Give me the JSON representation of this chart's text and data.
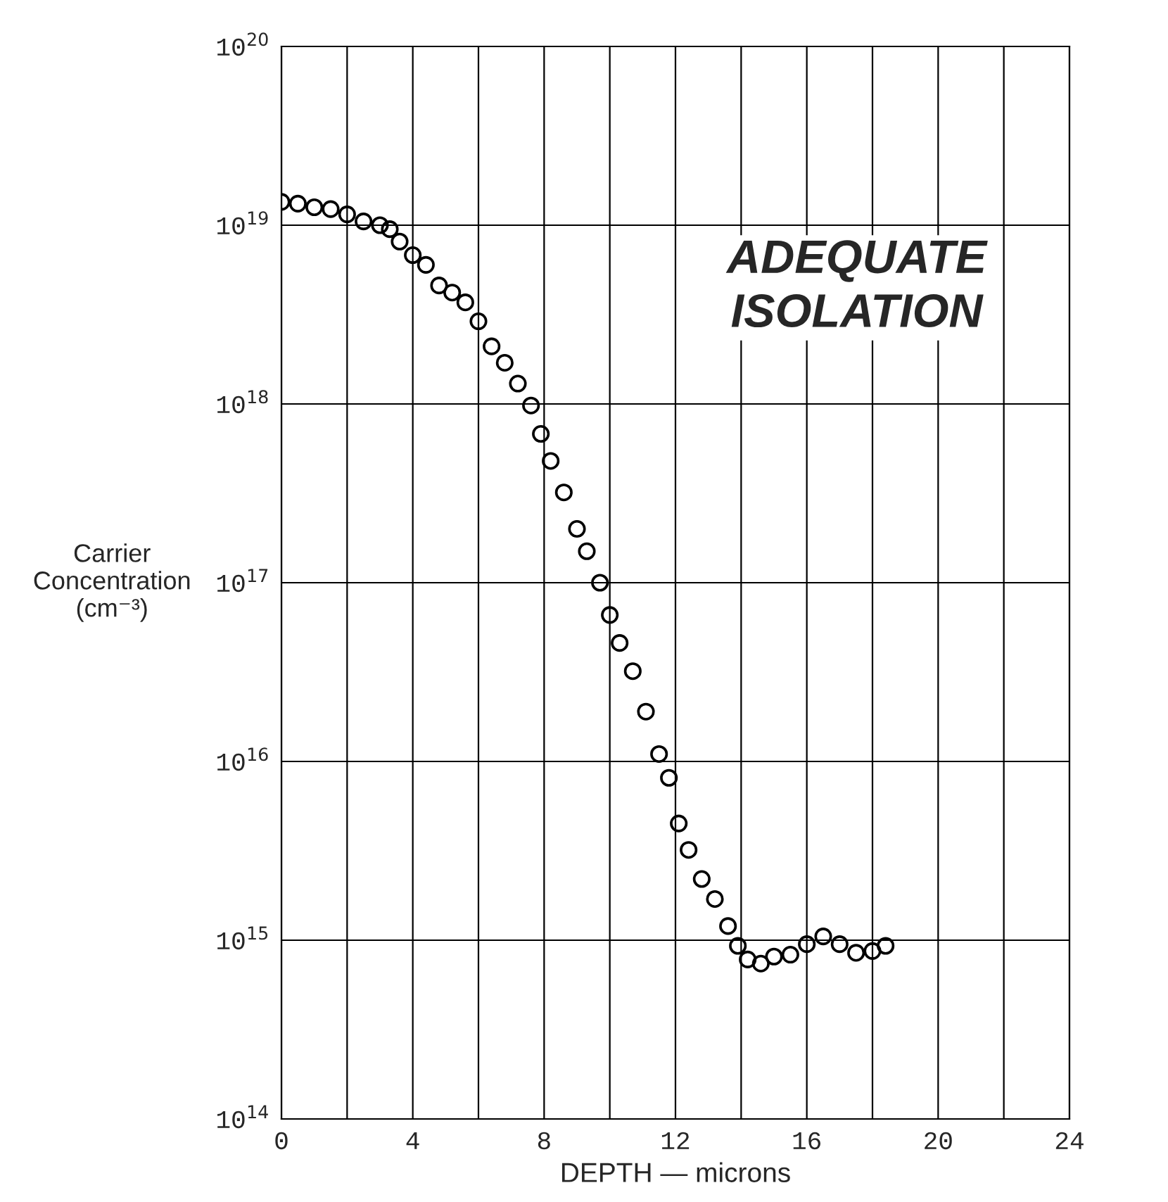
{
  "chart_data": {
    "type": "scatter",
    "x": [
      0,
      0.5,
      1,
      1.5,
      2,
      2.5,
      3,
      3.3,
      3.6,
      4,
      4.4,
      4.8,
      5.2,
      5.6,
      6,
      6.4,
      6.8,
      7.2,
      7.6,
      7.9,
      8.2,
      8.6,
      9,
      9.3,
      9.7,
      10,
      10.3,
      10.7,
      11.1,
      11.5,
      11.8,
      12.1,
      12.4,
      12.8,
      13.2,
      13.6,
      13.9,
      14.2,
      14.6,
      15,
      15.5,
      16,
      16.5,
      17,
      17.5,
      18,
      18.4
    ],
    "values": [
      1.35e+19,
      1.32e+19,
      1.26e+19,
      1.23e+19,
      1.15e+19,
      1.05e+19,
      1e+19,
      9.5e+18,
      8.1e+18,
      6.8e+18,
      6e+18,
      4.6e+18,
      4.2e+18,
      3.7e+18,
      2.9e+18,
      2.1e+18,
      1.7e+18,
      1.3e+18,
      9.8e+17,
      6.8e+17,
      4.8e+17,
      3.2e+17,
      2e+17,
      1.5e+17,
      1e+17,
      6.6e+16,
      4.6e+16,
      3.2e+16,
      1.9e+16,
      1.1e+16,
      8100000000000000.0,
      4500000000000000.0,
      3200000000000000.0,
      2200000000000000.0,
      1700000000000000.0,
      1200000000000000.0,
      930000000000000.0,
      780000000000000.0,
      740000000000000.0,
      810000000000000.0,
      830000000000000.0,
      950000000000000.0,
      1050000000000000.0,
      950000000000000.0,
      850000000000000.0,
      870000000000000.0,
      930000000000000.0
    ],
    "color": "#000000",
    "xlabel": "DEPTH — microns",
    "ylabel": "Carrier\nConcentration\n(cm⁻³)",
    "marker": "circle",
    "annotations": [
      "ADEQUATE\nISOLATION"
    ],
    "log": "y",
    "xlim": [
      0,
      24
    ],
    "xticks": [
      0,
      {
        "value": 2,
        "label": null
      },
      4,
      {
        "value": 6,
        "label": null
      },
      8,
      {
        "value": 10,
        "label": null
      },
      12,
      {
        "value": 14,
        "label": null
      },
      16,
      {
        "value": 18,
        "label": null
      },
      20,
      {
        "value": 22,
        "label": null
      },
      24
    ],
    "ylim": [
      100000000000000.0,
      1e+20
    ],
    "yticks": [
      {
        "value": 100000000000000.0,
        "label": "10$^{14}$"
      },
      {
        "value": 1000000000000000.0,
        "label": "10$^{15}$"
      },
      {
        "value": 1e+16,
        "label": "10$^{16}$"
      },
      {
        "value": 1e+17,
        "label": "10$^{17}$"
      },
      {
        "value": 1e+18,
        "label": "10$^{18}$"
      },
      {
        "value": 1e+19,
        "label": "10$^{19}$"
      },
      {
        "value": 1e+20,
        "label": "10$^{20}$"
      }
    ],
    "grid": true
  }
}
